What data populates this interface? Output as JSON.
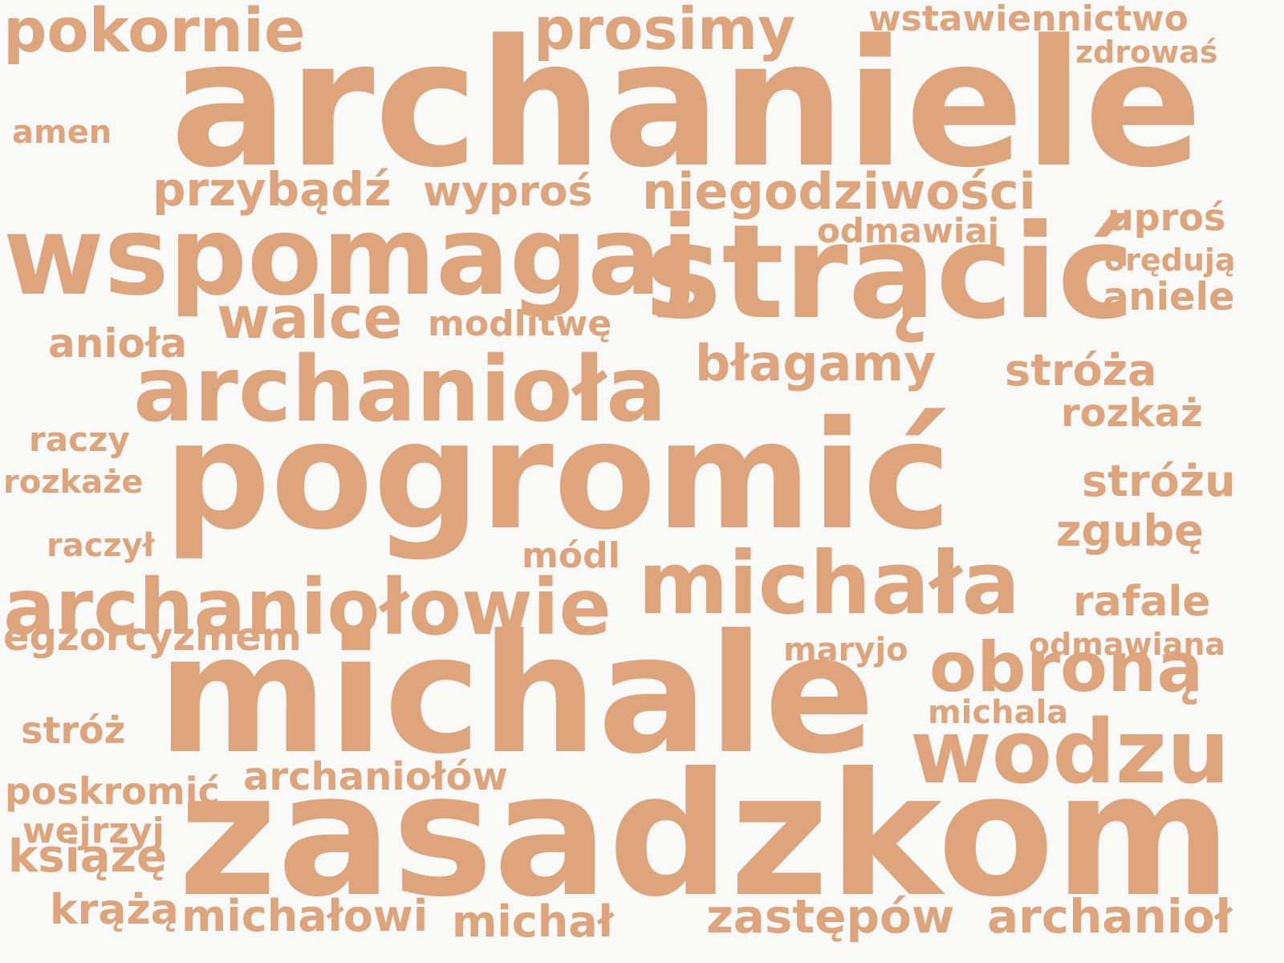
{
  "style": {
    "text_color": "#dea47c",
    "background": "#f9f9f7"
  },
  "words": [
    {
      "id": "archaniele",
      "text": "archaniele"
    },
    {
      "id": "zasadzkom",
      "text": "zasadzkom"
    },
    {
      "id": "michale",
      "text": "michale"
    },
    {
      "id": "pogromic",
      "text": "pogromić"
    },
    {
      "id": "stracic",
      "text": "strącić"
    },
    {
      "id": "wspomagaj",
      "text": "wspomagaj"
    },
    {
      "id": "archaniola",
      "text": "archanioła"
    },
    {
      "id": "archaniolowie",
      "text": "archaniołowie"
    },
    {
      "id": "michala",
      "text": "michała"
    },
    {
      "id": "wodzu",
      "text": "wodzu"
    },
    {
      "id": "obrona",
      "text": "obroną"
    },
    {
      "id": "pokornie",
      "text": "pokornie"
    },
    {
      "id": "prosimy",
      "text": "prosimy"
    },
    {
      "id": "walce",
      "text": "walce"
    },
    {
      "id": "niegodziwosci",
      "text": "niegodziwości"
    },
    {
      "id": "przybadz",
      "text": "przybądź"
    },
    {
      "id": "wypros",
      "text": "wyproś"
    },
    {
      "id": "blagamy",
      "text": "błagamy"
    },
    {
      "id": "zastepow",
      "text": "zastępów"
    },
    {
      "id": "archaniol",
      "text": "archanioł"
    },
    {
      "id": "michalowi",
      "text": "michałowi"
    },
    {
      "id": "michal",
      "text": "michał"
    },
    {
      "id": "straza",
      "text": "stróża"
    },
    {
      "id": "strozu",
      "text": "stróżu"
    },
    {
      "id": "zgube",
      "text": "zgubę"
    },
    {
      "id": "rafale",
      "text": "rafale"
    },
    {
      "id": "aniele",
      "text": "aniele"
    },
    {
      "id": "upros",
      "text": "uproś"
    },
    {
      "id": "rozkaz",
      "text": "rozkaż"
    },
    {
      "id": "archaniolow",
      "text": "archaniołów"
    },
    {
      "id": "egzorcyzmem",
      "text": "egzorcyzmem"
    },
    {
      "id": "ksiaze",
      "text": "książę"
    },
    {
      "id": "kraza",
      "text": "krążą"
    },
    {
      "id": "poskromic",
      "text": "poskromić"
    },
    {
      "id": "wstawiennictwo",
      "text": "wstawiennictwo"
    },
    {
      "id": "aniola",
      "text": "anioła"
    },
    {
      "id": "modlitwe",
      "text": "modlitwę"
    },
    {
      "id": "odmawiaj",
      "text": "odmawiaj"
    },
    {
      "id": "oreduja",
      "text": "orędują"
    },
    {
      "id": "odmawiana",
      "text": "odmawiana"
    },
    {
      "id": "modl",
      "text": "módl"
    },
    {
      "id": "maryjo",
      "text": "maryjo"
    },
    {
      "id": "michala2",
      "text": "michala"
    },
    {
      "id": "zdrowas",
      "text": "zdrowaś"
    },
    {
      "id": "amen",
      "text": "amen"
    },
    {
      "id": "raczy",
      "text": "raczy"
    },
    {
      "id": "rozkaze",
      "text": "rozkaże"
    },
    {
      "id": "raczyl",
      "text": "raczył"
    },
    {
      "id": "stroz",
      "text": "stróż"
    },
    {
      "id": "wejrzyj",
      "text": "wejrzyj"
    }
  ]
}
